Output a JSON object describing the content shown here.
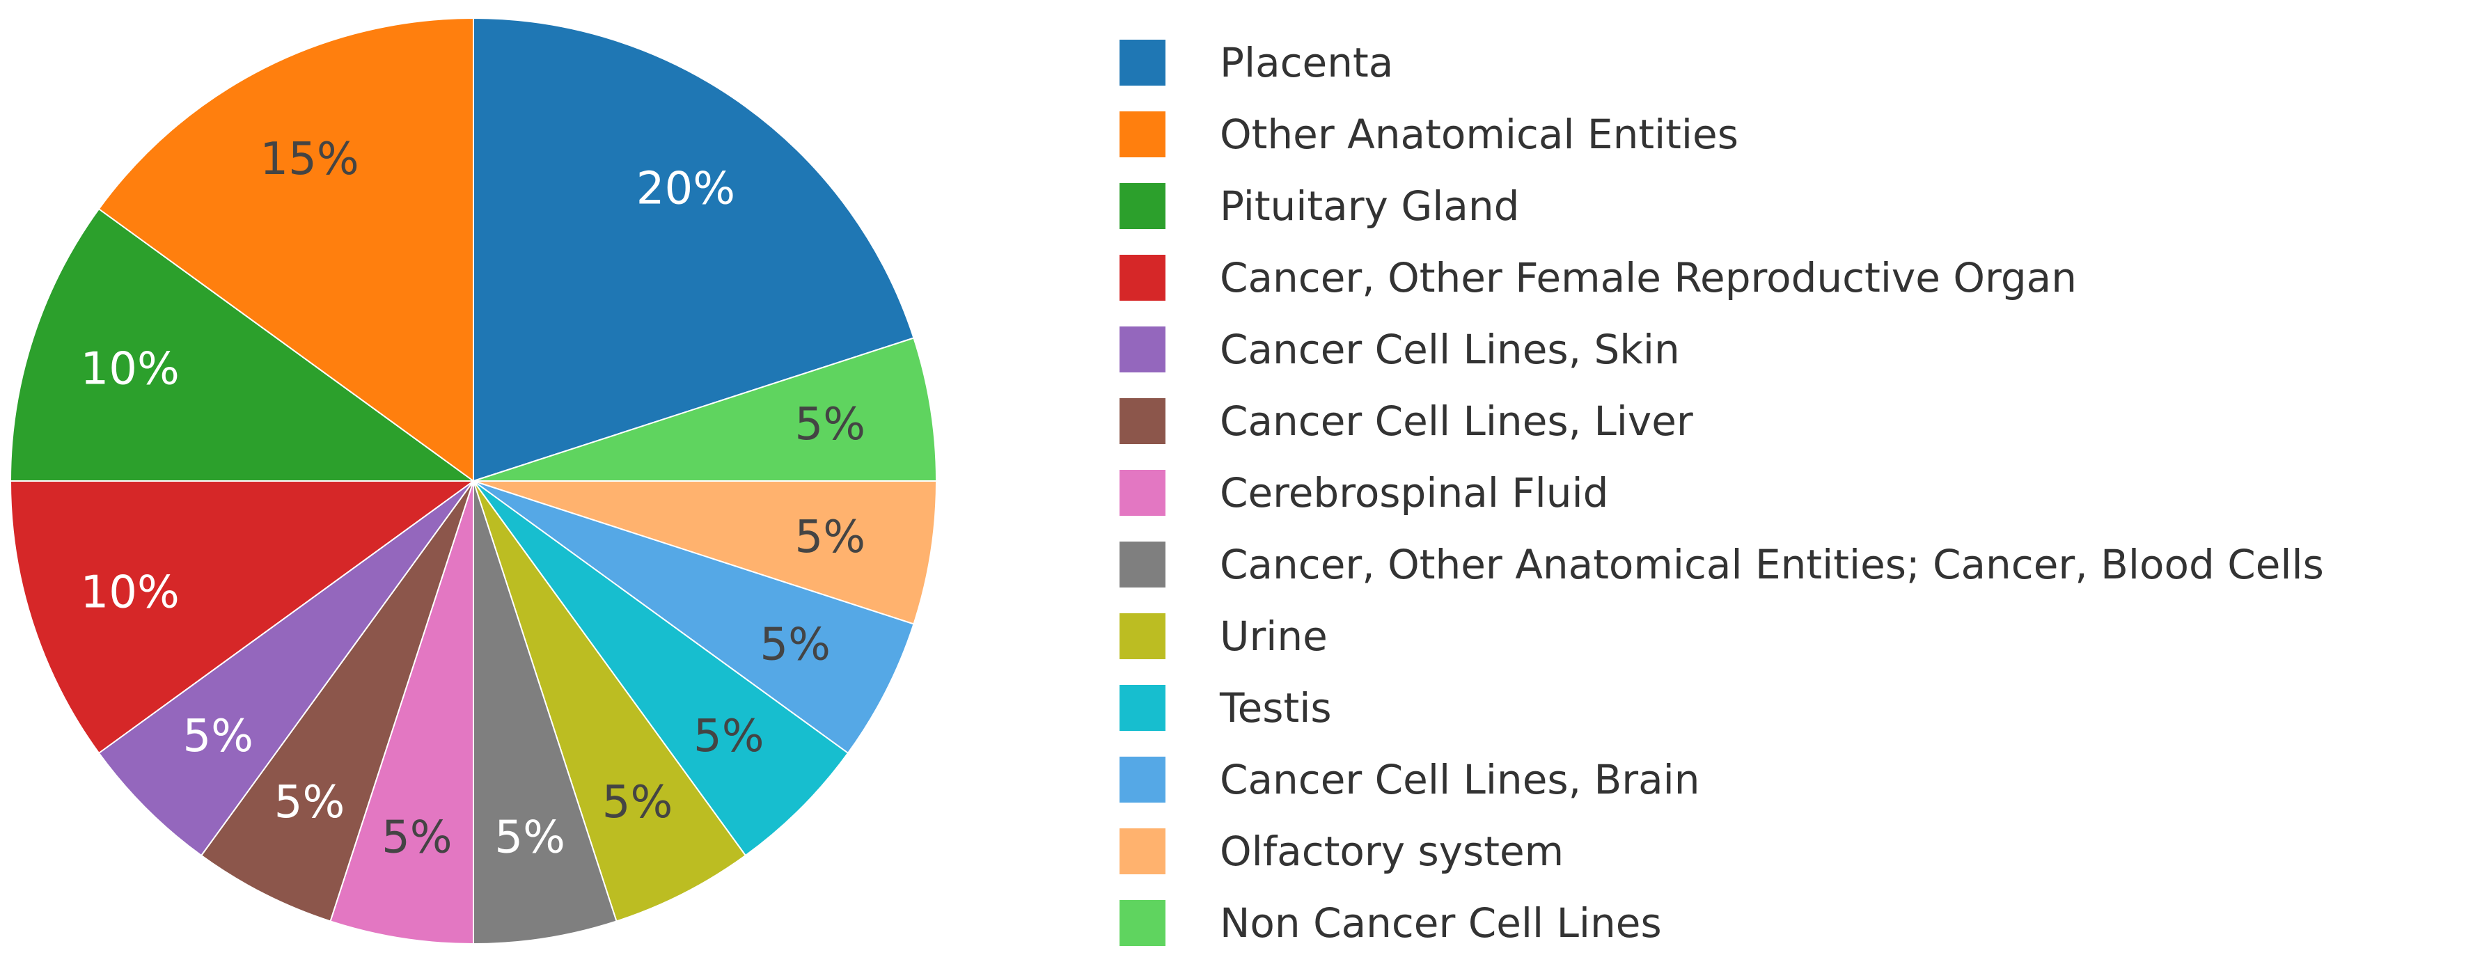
{
  "chart_data": {
    "type": "pie",
    "labels": [
      "Placenta",
      "Other Anatomical Entities",
      "Pituitary Gland",
      "Cancer, Other Female Reproductive Organ",
      "Cancer Cell Lines, Skin",
      "Cancer Cell Lines, Liver",
      "Cerebrospinal Fluid",
      "Cancer, Other Anatomical Entities; Cancer, Blood Cells",
      "Urine",
      "Testis",
      "Cancer Cell Lines, Brain",
      "Olfactory system",
      "Non Cancer Cell Lines"
    ],
    "values": [
      20,
      15,
      10,
      10,
      5,
      5,
      5,
      5,
      5,
      5,
      5,
      5,
      5
    ],
    "value_labels": [
      "20%",
      "15%",
      "10%",
      "10%",
      "5%",
      "5%",
      "5%",
      "5%",
      "5%",
      "5%",
      "5%",
      "5%",
      "5%"
    ],
    "colors": [
      "#1f77b4",
      "#ff7f0e",
      "#2ca02c",
      "#d62728",
      "#9467bd",
      "#8c564b",
      "#e377c2",
      "#7f7f7f",
      "#bcbd22",
      "#17becf",
      "#55a8e6",
      "#ffb26e",
      "#5fd45f"
    ],
    "label_colors": [
      "#ffffff",
      "#444444",
      "#ffffff",
      "#ffffff",
      "#ffffff",
      "#ffffff",
      "#444444",
      "#ffffff",
      "#444444",
      "#444444",
      "#444444",
      "#444444",
      "#444444"
    ],
    "slice_order": [
      0,
      12,
      11,
      10,
      9,
      8,
      7,
      6,
      5,
      4,
      3,
      2,
      1
    ],
    "direction": "clockwise",
    "start_angle": "12 o'clock",
    "legend_position": "right",
    "title": ""
  }
}
